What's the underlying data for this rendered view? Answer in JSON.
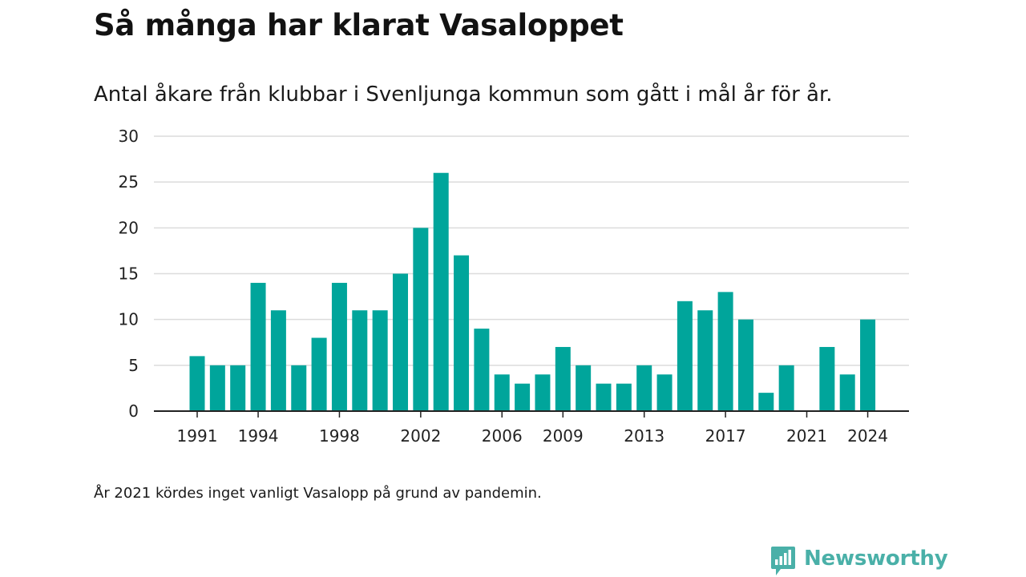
{
  "header": {
    "title": "Så många har klarat Vasaloppet",
    "subtitle": "Antal åkare från klubbar i Svenljunga kommun som gått i mål år för år."
  },
  "footer": {
    "note": "År 2021 kördes inget vanligt Vasalopp på grund av pandemin.",
    "brand": "Newsworthy"
  },
  "colors": {
    "bar": "#00a59b",
    "grid": "#dcdcdc",
    "axis": "#222222",
    "brand": "#4ab0a8"
  },
  "chart_data": {
    "type": "bar",
    "categories": [
      1991,
      1992,
      1993,
      1994,
      1995,
      1996,
      1997,
      1998,
      1999,
      2000,
      2001,
      2002,
      2003,
      2004,
      2005,
      2006,
      2007,
      2008,
      2009,
      2010,
      2011,
      2012,
      2013,
      2014,
      2015,
      2016,
      2017,
      2018,
      2019,
      2020,
      2021,
      2022,
      2023,
      2024
    ],
    "values": [
      6,
      5,
      5,
      14,
      11,
      5,
      8,
      14,
      11,
      11,
      15,
      20,
      26,
      17,
      9,
      4,
      3,
      4,
      7,
      5,
      3,
      3,
      5,
      4,
      12,
      11,
      13,
      10,
      2,
      5,
      0,
      7,
      4,
      10
    ],
    "x_tick_labels": [
      "1991",
      "1994",
      "1998",
      "2002",
      "2006",
      "2009",
      "2013",
      "2017",
      "2021",
      "2024"
    ],
    "y_ticks": [
      0,
      5,
      10,
      15,
      20,
      25,
      30
    ],
    "ylim": [
      0,
      30
    ],
    "grid": true,
    "legend": "none",
    "title": "Så många har klarat Vasaloppet",
    "subtitle": "Antal åkare från klubbar i Svenljunga kommun som gått i mål år för år.",
    "xlabel": "",
    "ylabel": ""
  }
}
